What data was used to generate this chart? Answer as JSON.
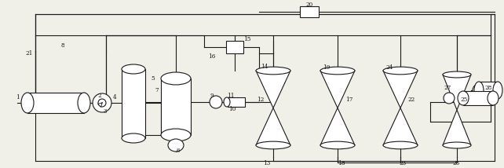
{
  "bg_color": "#f0efe8",
  "line_color": "#1a1a1a",
  "lw": 0.8,
  "fig_w": 6.42,
  "fig_h": 2.14,
  "dpi": 100
}
